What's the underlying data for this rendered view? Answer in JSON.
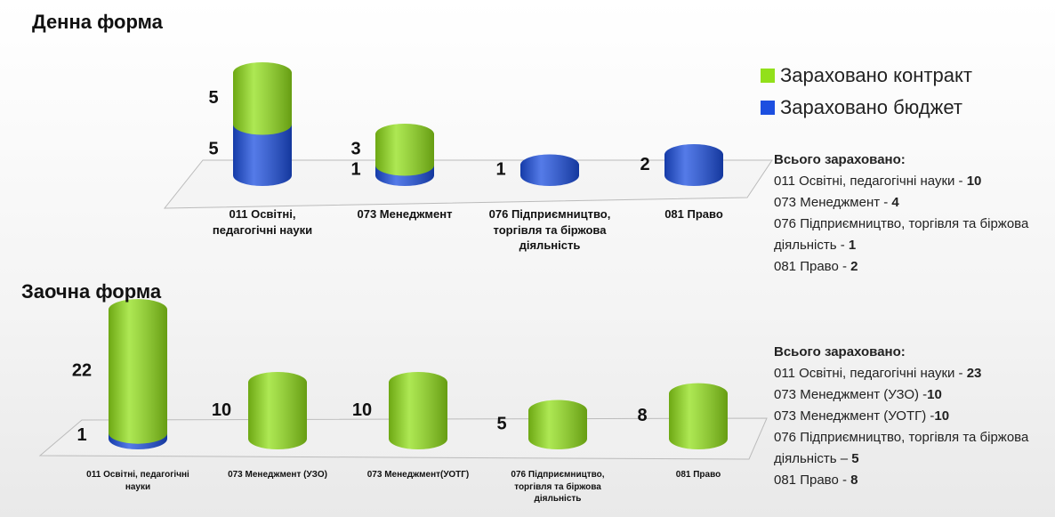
{
  "chart_data": [
    {
      "type": "cylinder-stacked",
      "title": "Денна форма",
      "categories": [
        "011 Освітні, педагогічні науки",
        "073 Менеджмент",
        "076 Підприємництво, торгівля та біржова діяльність",
        "081 Право"
      ],
      "series": [
        {
          "name": "Зараховано бюджет",
          "color": "#1c4fe0",
          "values": [
            5,
            1,
            1,
            2
          ]
        },
        {
          "name": "Зараховано контракт",
          "color": "#92e01a",
          "values": [
            5,
            3,
            null,
            null
          ]
        }
      ]
    },
    {
      "type": "cylinder-stacked",
      "title": "Заочна форма",
      "categories": [
        "011 Освітні, педагогічні науки",
        "073 Менеджмент (УЗО)",
        "073 Менеджмент(УОТГ)",
        "076 Підприємництво, торгівля та біржова діяльність",
        "081 Право"
      ],
      "series": [
        {
          "color": "#1c4fe0",
          "values": [
            1,
            null,
            null,
            null,
            null
          ]
        },
        {
          "color": "#92e01a",
          "values": [
            22,
            10,
            10,
            5,
            8
          ]
        }
      ]
    }
  ],
  "summaries": [
    {
      "heading": "Всього зараховано:",
      "lines": [
        {
          "text": "011 Освітні, педагогічні науки - ",
          "value": 10
        },
        {
          "text": "073 Менеджмент - ",
          "value": 4
        },
        {
          "text": "076 Підприємництво, торгівля та біржова діяльність - ",
          "value": 1
        },
        {
          "text": "081 Право - ",
          "value": 2
        }
      ]
    },
    {
      "heading": "Всього зараховано:",
      "lines": [
        {
          "text": "011 Освітні, педагогічні науки - ",
          "value": 23
        },
        {
          "text": "073 Менеджмент (УЗО) -",
          "value": 10
        },
        {
          "text": "073 Менеджмент (УОТГ) -",
          "value": 10
        },
        {
          "text": "076 Підприємництво, торгівля та біржова діяльність – ",
          "value": 5
        },
        {
          "text": "081 Право - ",
          "value": 8
        }
      ]
    }
  ]
}
